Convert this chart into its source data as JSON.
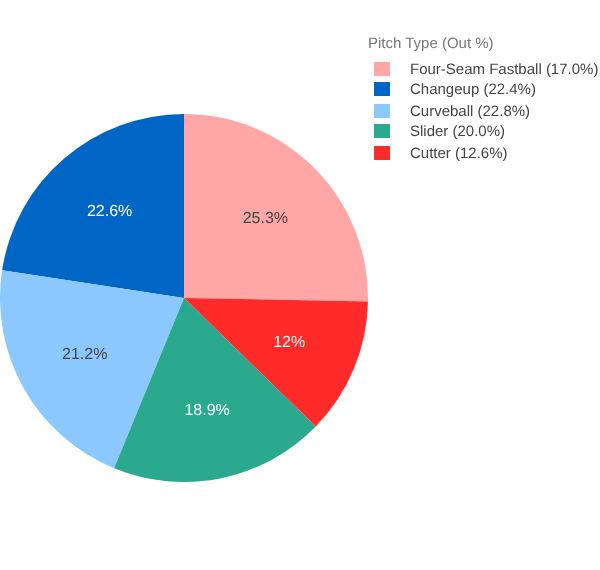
{
  "chart_data": {
    "type": "pie",
    "legend_title": "Pitch Type (Out %)",
    "categories": [
      "Four-Seam Fastball (17.0%)",
      "Changeup (22.4%)",
      "Curveball (22.8%)",
      "Slider (20.0%)",
      "Cutter (12.6%)"
    ],
    "values": [
      25.3,
      22.6,
      21.2,
      18.9,
      12
    ],
    "colors": [
      "#ffa6a6",
      "#0066c6",
      "#8ac8ff",
      "#2aa98f",
      "#ff2a2a"
    ],
    "value_labels": [
      "25.3%",
      "22.6%",
      "21.2%",
      "18.9%",
      "12%"
    ],
    "legend": "top right"
  }
}
